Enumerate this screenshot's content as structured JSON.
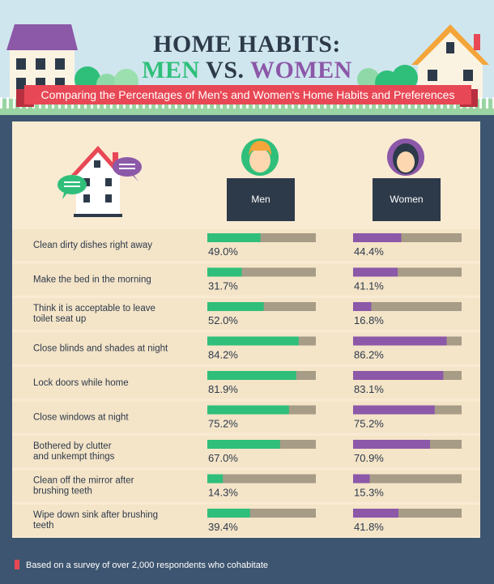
{
  "header": {
    "title_line1": "HOME HABITS:",
    "title_men": "MEN",
    "title_vs": "VS.",
    "title_women": "WOMEN",
    "subtitle": "Comparing the Percentages of Men's and Women's Home Habits and Preferences"
  },
  "footer": {
    "note": "Based on a survey of over 2,000 respondents who cohabitate"
  },
  "colors": {
    "men": "#2fbf7a",
    "women": "#8c58a8",
    "track": "#a79c86",
    "accent": "#e84855",
    "dark": "#2d3a4a"
  },
  "icons": [
    "house-chat-icon",
    "man-avatar-icon",
    "woman-avatar-icon"
  ],
  "chart_data": {
    "type": "bar",
    "orientation": "horizontal",
    "categories": [
      "Clean dirty dishes right away",
      "Make the bed in the morning",
      "Think it is acceptable to leave\ntoilet seat up",
      "Close blinds and shades at night",
      "Lock doors while home",
      "Close windows at night",
      "Bothered by clutter\nand unkempt things",
      "Clean off the mirror after\nbrushing teeth",
      "Wipe down sink after brushing\nteeth"
    ],
    "series": [
      {
        "name": "Men",
        "values": [
          49.0,
          31.7,
          52.0,
          84.2,
          81.9,
          75.2,
          67.0,
          14.3,
          39.4
        ],
        "labels": [
          "49.0%",
          "31.7%",
          "52.0%",
          "84.2%",
          "81.9%",
          "75.2%",
          "67.0%",
          "14.3%",
          "39.4%"
        ]
      },
      {
        "name": "Women",
        "values": [
          44.4,
          41.1,
          16.8,
          86.2,
          83.1,
          75.2,
          70.9,
          15.3,
          41.8
        ],
        "labels": [
          "44.4%",
          "41.1%",
          "16.8%",
          "86.2%",
          "83.1%",
          "75.2%",
          "70.9%",
          "15.3%",
          "41.8%"
        ]
      }
    ],
    "xlim": [
      0,
      100
    ],
    "grid": false,
    "legend": "top"
  }
}
